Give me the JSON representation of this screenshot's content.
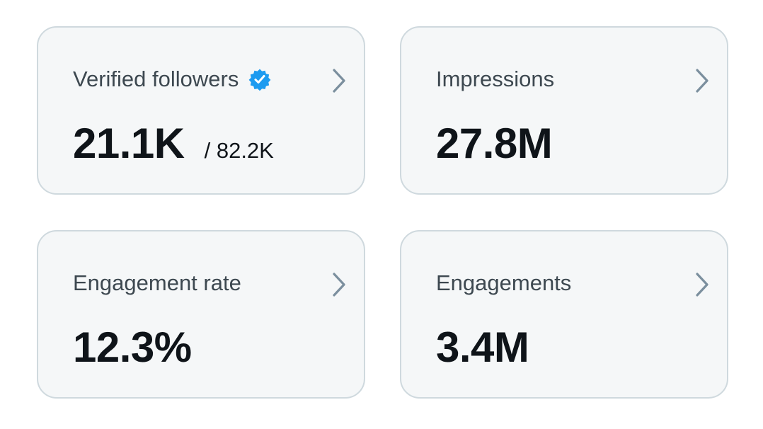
{
  "colors": {
    "card_background": "#f5f7f8",
    "card_border": "#cfd9de",
    "label_text": "#3d4850",
    "value_text": "#0f1419",
    "chevron": "#7b8f9e",
    "verified_badge": "#1d9bf0"
  },
  "cards": [
    {
      "label": "Verified followers",
      "value": "21.1K",
      "subvalue": "/ 82.2K",
      "badge_icon": "verified-badge-icon",
      "action_icon": "chevron-right-icon"
    },
    {
      "label": "Impressions",
      "value": "27.8M",
      "action_icon": "chevron-right-icon"
    },
    {
      "label": "Engagement rate",
      "value": "12.3%",
      "action_icon": "chevron-right-icon"
    },
    {
      "label": "Engagements",
      "value": "3.4M",
      "action_icon": "chevron-right-icon"
    }
  ]
}
